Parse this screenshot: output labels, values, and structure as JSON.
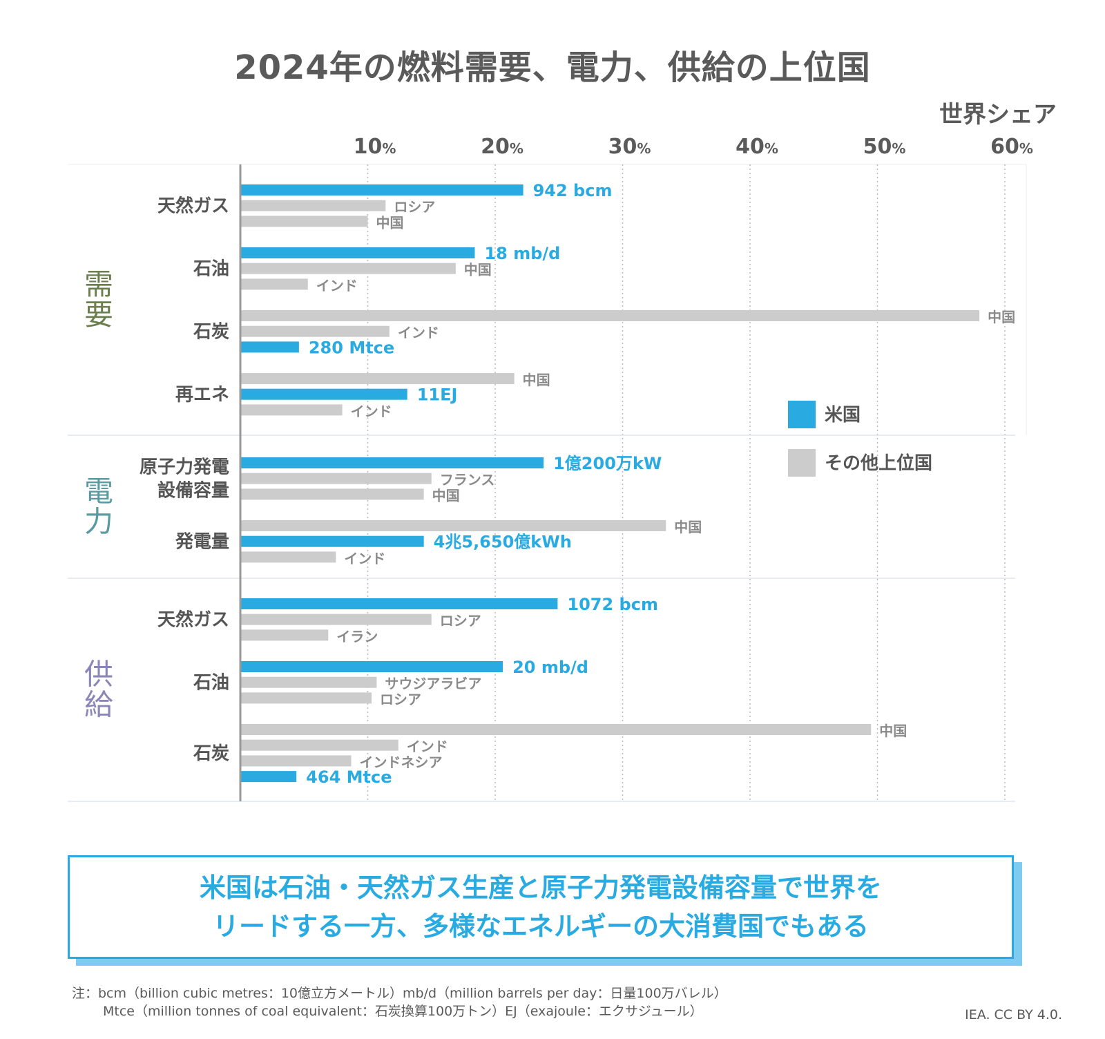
{
  "title": "2024年の燃料需要、電力、供給の上位国",
  "axis_title": "世界シェア",
  "legend": {
    "us": "米国",
    "others": "その他上位国"
  },
  "colors": {
    "us": "#29abe2",
    "other": "#cccccc",
    "demand": "#6b7f4e",
    "power": "#5b9aa0",
    "supply": "#8b86b8"
  },
  "chart_data": {
    "type": "bar",
    "orientation": "horizontal",
    "x_axis": {
      "label": "世界シェア",
      "range": [
        0,
        62
      ],
      "ticks": [
        10,
        20,
        30,
        40,
        50,
        60
      ],
      "tick_labels": [
        "10",
        "20",
        "30",
        "40",
        "50",
        "60"
      ],
      "tick_unit": "%",
      "grid": true
    },
    "sections": [
      {
        "name": "需要",
        "color_key": "demand",
        "groups": [
          {
            "label": [
              "天然ガス"
            ],
            "bars": [
              {
                "country": "米国",
                "value": 22.2,
                "label": "942 bcm",
                "us": true
              },
              {
                "country": "ロシア",
                "value": 11.4
              },
              {
                "country": "中国",
                "value": 10.0
              }
            ]
          },
          {
            "label": [
              "石油"
            ],
            "bars": [
              {
                "country": "米国",
                "value": 18.4,
                "label": "18 mb/d",
                "us": true
              },
              {
                "country": "中国",
                "value": 16.9
              },
              {
                "country": "インド",
                "value": 5.3
              }
            ]
          },
          {
            "label": [
              "石炭"
            ],
            "bars": [
              {
                "country": "中国",
                "value": 58.0
              },
              {
                "country": "インド",
                "value": 11.7
              },
              {
                "country": "米国",
                "value": 4.6,
                "label": "280 Mtce",
                "us": true
              }
            ]
          },
          {
            "label": [
              "再エネ"
            ],
            "bars": [
              {
                "country": "中国",
                "value": 21.5
              },
              {
                "country": "米国",
                "value": 13.1,
                "label": "11EJ",
                "us": true
              },
              {
                "country": "インド",
                "value": 8.0
              }
            ]
          }
        ]
      },
      {
        "name": "電力",
        "color_key": "power",
        "groups": [
          {
            "label": [
              "原子力発電",
              "設備容量"
            ],
            "bars": [
              {
                "country": "米国",
                "value": 23.8,
                "label": "1億200万kW",
                "us": true
              },
              {
                "country": "フランス",
                "value": 15.0
              },
              {
                "country": "中国",
                "value": 14.4
              }
            ]
          },
          {
            "label": [
              "発電量"
            ],
            "bars": [
              {
                "country": "中国",
                "value": 33.4
              },
              {
                "country": "米国",
                "value": 14.4,
                "label": "4兆5,650億kWh",
                "us": true
              },
              {
                "country": "インド",
                "value": 7.5
              }
            ]
          }
        ]
      },
      {
        "name": "供給",
        "color_key": "supply",
        "groups": [
          {
            "label": [
              "天然ガス"
            ],
            "bars": [
              {
                "country": "米国",
                "value": 24.9,
                "label": "1072 bcm",
                "us": true
              },
              {
                "country": "ロシア",
                "value": 15.0
              },
              {
                "country": "イラン",
                "value": 6.9
              }
            ]
          },
          {
            "label": [
              "石油"
            ],
            "bars": [
              {
                "country": "米国",
                "value": 20.6,
                "label": "20 mb/d",
                "us": true
              },
              {
                "country": "サウジアラビア",
                "value": 10.7
              },
              {
                "country": "ロシア",
                "value": 10.3
              }
            ]
          },
          {
            "label": [
              "石炭"
            ],
            "bars": [
              {
                "country": "中国",
                "value": 49.5
              },
              {
                "country": "インド",
                "value": 12.4
              },
              {
                "country": "インドネシア",
                "value": 8.7
              },
              {
                "country": "米国",
                "value": 4.4,
                "label": "464 Mtce",
                "us": true
              }
            ]
          }
        ]
      }
    ]
  },
  "callout": [
    "米国は石油・天然ガス生産と原子力発電設備容量で世界を",
    "リードする一方、多様なエネルギーの大消費国でもある"
  ],
  "note": [
    "注：bcm（billion cubic metres：10億立方メートル）mb/d（million barrels per day：日量100万バレル）",
    "Mtce（million tonnes of coal equivalent：石炭換算100万トン）EJ（exajoule：エクサジュール）"
  ],
  "credit": "IEA. CC BY 4.0."
}
